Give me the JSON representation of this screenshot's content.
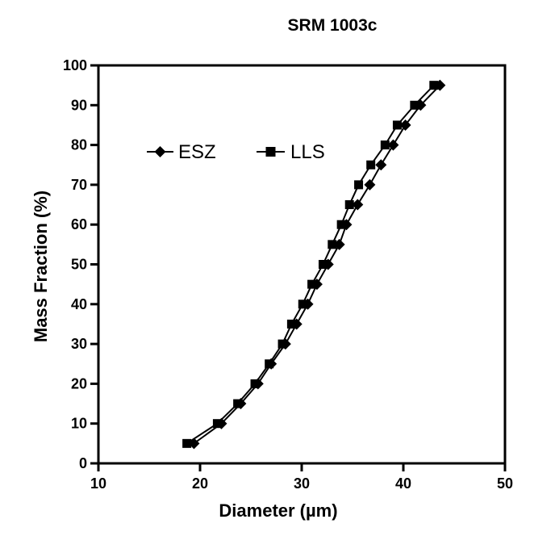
{
  "chart_data": {
    "type": "line",
    "title": "SRM 1003c",
    "xlabel": "Diameter (µm)",
    "ylabel": "Mass Fraction (%)",
    "xlim": [
      10,
      50
    ],
    "ylim": [
      0,
      100
    ],
    "x_ticks": [
      10,
      20,
      30,
      40,
      50
    ],
    "y_ticks": [
      0,
      10,
      20,
      30,
      40,
      50,
      60,
      70,
      80,
      90,
      100
    ],
    "grid": false,
    "legend_position": "inside-top-left",
    "line_color": "#000000",
    "mass_fraction_percent": [
      5,
      10,
      15,
      20,
      25,
      30,
      35,
      40,
      45,
      50,
      55,
      60,
      65,
      70,
      75,
      80,
      85,
      90,
      95
    ],
    "series": [
      {
        "name": "ESZ",
        "marker": "diamond",
        "color": "#000000",
        "diameter_um": [
          19.4,
          22.1,
          24.0,
          25.7,
          27.0,
          28.4,
          29.5,
          30.6,
          31.5,
          32.6,
          33.7,
          34.4,
          35.5,
          36.7,
          37.8,
          39.0,
          40.2,
          41.7,
          43.6
        ]
      },
      {
        "name": "LLS",
        "marker": "square",
        "color": "#000000",
        "diameter_um": [
          18.7,
          21.7,
          23.7,
          25.4,
          26.8,
          28.1,
          29.0,
          30.1,
          31.0,
          32.1,
          33.0,
          33.9,
          34.7,
          35.6,
          36.8,
          38.2,
          39.4,
          41.1,
          43.0
        ]
      }
    ]
  }
}
